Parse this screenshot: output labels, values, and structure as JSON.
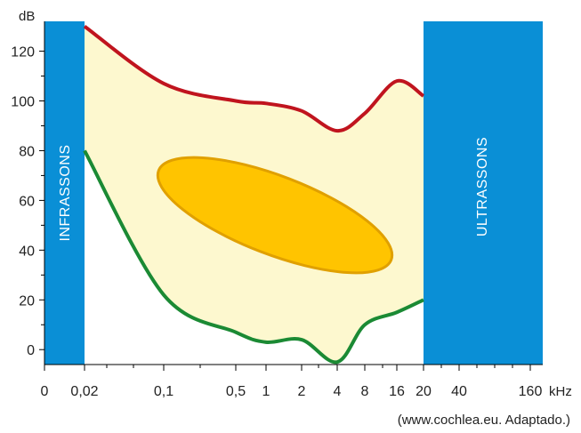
{
  "chart_data": {
    "type": "area",
    "ylabel": "dB",
    "xlabel": "kHz",
    "ylim": [
      -6,
      132
    ],
    "y_ticks": [
      0,
      20,
      40,
      60,
      80,
      100,
      120
    ],
    "y_tick_labels": [
      "0",
      "20",
      "40",
      "60",
      "80",
      "100",
      "120"
    ],
    "x_tick_labels": [
      "0",
      "0,02",
      "0,1",
      "0,5",
      "1",
      "2",
      "4",
      "8",
      "16",
      "20",
      "40",
      "160"
    ],
    "bands": [
      {
        "label": "INFRASSONS",
        "x_range_khz": [
          0,
          0.02
        ],
        "color": "#0a8fd6"
      },
      {
        "label": "ULTRASSONS",
        "x_range_khz": [
          20,
          160
        ],
        "color": "#0a8fd6"
      }
    ],
    "series": [
      {
        "role": "upper boundary",
        "color": "#c0141e",
        "points": [
          [
            "0,02",
            130
          ],
          [
            "0,1",
            107
          ],
          [
            "0,5",
            100
          ],
          [
            "1",
            99
          ],
          [
            "2",
            96
          ],
          [
            "4",
            88
          ],
          [
            "8",
            95
          ],
          [
            "16",
            108
          ],
          [
            "20",
            102
          ]
        ]
      },
      {
        "role": "lower boundary",
        "color": "#1b8a34",
        "points": [
          [
            "0,02",
            80
          ],
          [
            "0,1",
            22
          ],
          [
            "0,5",
            7
          ],
          [
            "1",
            3
          ],
          [
            "2",
            4
          ],
          [
            "4",
            -5
          ],
          [
            "8",
            10
          ],
          [
            "16",
            15
          ],
          [
            "20",
            20
          ]
        ]
      }
    ],
    "region_fill": "#fdf8cf",
    "ellipse": {
      "fill": "#ffc400",
      "stroke": "#e0a000"
    }
  },
  "source_note": "(www.cochlea.eu. Adaptado.)"
}
